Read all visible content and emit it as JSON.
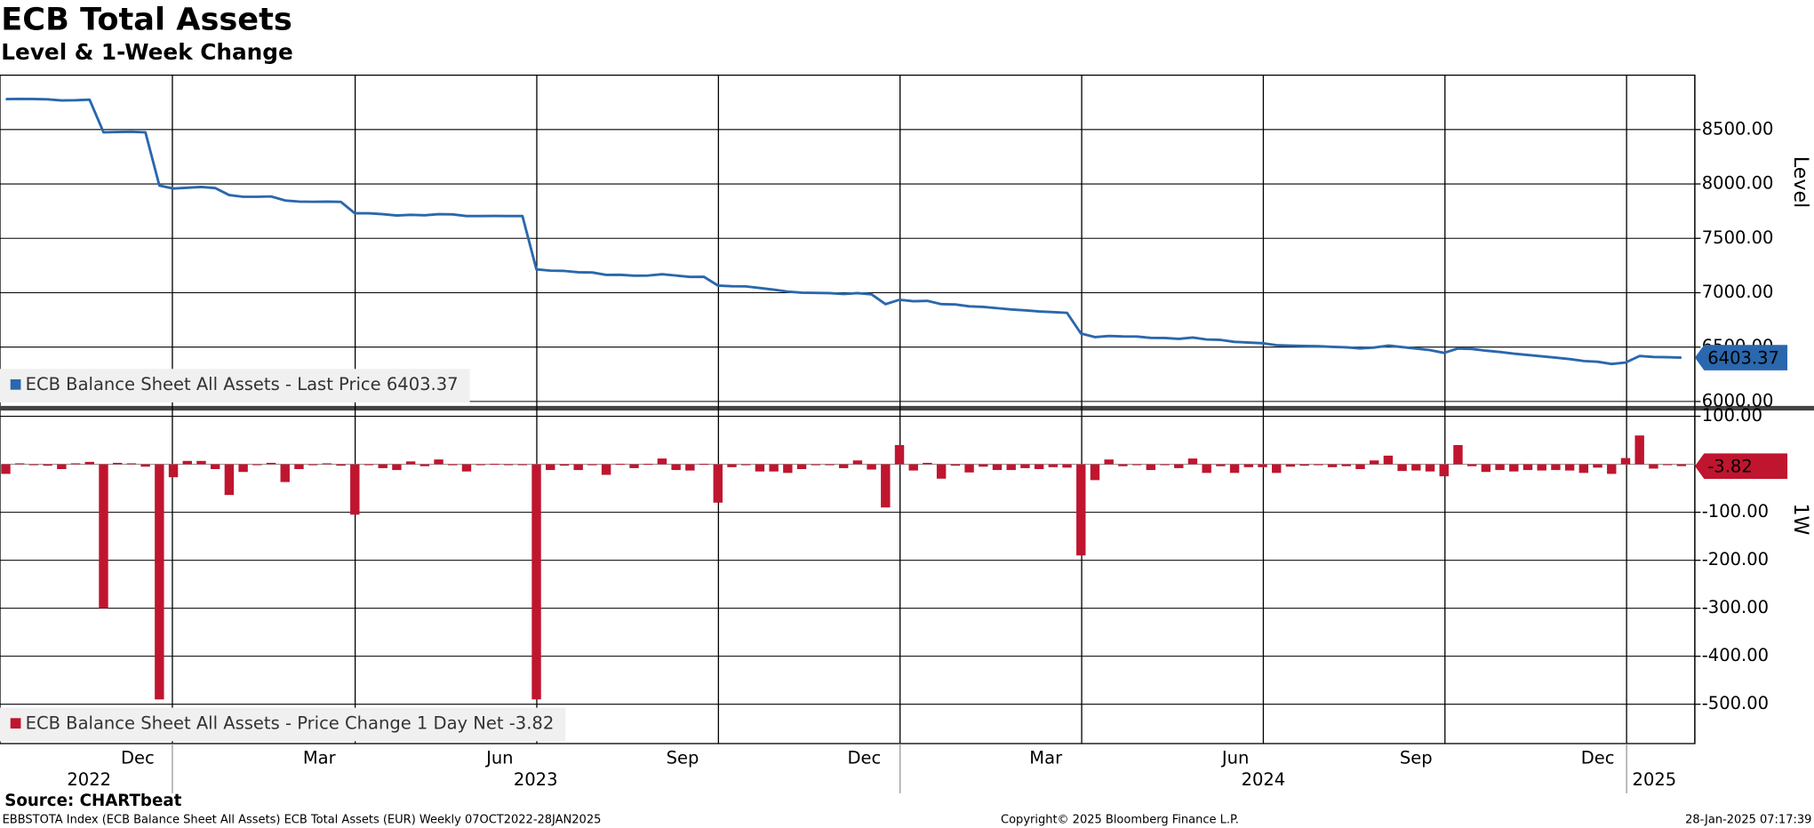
{
  "header": {
    "title": "ECB Total Assets",
    "subtitle": "Level & 1-Week Change"
  },
  "chart_data": [
    {
      "type": "line",
      "y_label": "Level",
      "ylim": [
        5970,
        9000
      ],
      "yticks": [
        {
          "value": 6000,
          "label": "6000.00"
        },
        {
          "value": 6500,
          "label": "6500.00"
        },
        {
          "value": 7000,
          "label": "7000.00"
        },
        {
          "value": 7500,
          "label": "7500.00"
        },
        {
          "value": 8000,
          "label": "8000.00"
        },
        {
          "value": 8500,
          "label": "8500.00"
        }
      ],
      "grid": true,
      "series": [
        {
          "name": "ECB Balance Sheet All Assets - Last Price 6403.37",
          "color": "#2a67ad",
          "values": [
            8780,
            8782,
            8781,
            8778,
            8768,
            8770,
            8775,
            8475,
            8478,
            8480,
            8475,
            7985,
            7958,
            7965,
            7972,
            7962,
            7898,
            7882,
            7882,
            7885,
            7848,
            7838,
            7836,
            7838,
            7835,
            7730,
            7730,
            7722,
            7710,
            7716,
            7712,
            7722,
            7720,
            7705,
            7705,
            7706,
            7705,
            7705,
            7215,
            7203,
            7200,
            7188,
            7186,
            7164,
            7165,
            7157,
            7158,
            7170,
            7158,
            7145,
            7146,
            7066,
            7060,
            7058,
            7043,
            7028,
            7010,
            7000,
            6998,
            6996,
            6988,
            6996,
            6985,
            6895,
            6935,
            6922,
            6925,
            6895,
            6892,
            6875,
            6870,
            6858,
            6846,
            6838,
            6828,
            6822,
            6815,
            6625,
            6592,
            6602,
            6598,
            6597,
            6585,
            6584,
            6576,
            6588,
            6570,
            6566,
            6548,
            6542,
            6536,
            6518,
            6513,
            6510,
            6508,
            6502,
            6498,
            6488,
            6496,
            6514,
            6500,
            6487,
            6472,
            6447,
            6487,
            6483,
            6467,
            6455,
            6440,
            6428,
            6415,
            6403,
            6390,
            6372,
            6365,
            6345,
            6358,
            6418,
            6409,
            6407.19,
            6403.37
          ]
        }
      ]
    },
    {
      "type": "bar",
      "y_label": "1W",
      "ylim": [
        -582,
        112
      ],
      "yticks": [
        {
          "value": 100,
          "label": "100.00"
        },
        {
          "value": -100,
          "label": "-100.00"
        },
        {
          "value": -200,
          "label": "-200.00"
        },
        {
          "value": -300,
          "label": "-300.00"
        },
        {
          "value": -400,
          "label": "-400.00"
        },
        {
          "value": -500,
          "label": "-500.00"
        }
      ],
      "grid": true,
      "series": [
        {
          "name": "ECB Balance Sheet All Assets - Price Change 1 Day Net -3.82",
          "color": "#c0152f",
          "values": [
            -20,
            2,
            -1,
            -3,
            -10,
            2,
            5,
            -300,
            3,
            2,
            -5,
            -490,
            -27,
            7,
            7,
            -10,
            -64,
            -16,
            0,
            3,
            -37,
            -10,
            -2,
            2,
            -3,
            -105,
            0,
            -8,
            -12,
            6,
            -4,
            10,
            -2,
            -15,
            0,
            1,
            -1,
            0,
            -490,
            -12,
            -3,
            -12,
            -2,
            -22,
            1,
            -8,
            1,
            12,
            -12,
            -13,
            1,
            -80,
            -6,
            -2,
            -15,
            -15,
            -18,
            -10,
            -2,
            -2,
            -8,
            8,
            -11,
            -90,
            40,
            -13,
            3,
            -30,
            -3,
            -17,
            -5,
            -12,
            -12,
            -8,
            -10,
            -6,
            -7,
            -190,
            -33,
            10,
            -4,
            -1,
            -12,
            -1,
            -8,
            12,
            -18,
            -4,
            -18,
            -6,
            -6,
            -18,
            -5,
            -3,
            -2,
            -6,
            -4,
            -10,
            8,
            18,
            -14,
            -13,
            -15,
            -25,
            40,
            -4,
            -16,
            -12,
            -15,
            -12,
            -13,
            -12,
            -13,
            -18,
            -7,
            -20,
            13,
            60,
            -9,
            -1.81,
            -3.82
          ]
        }
      ]
    }
  ],
  "x_axis": {
    "months": [
      "Dec",
      "Mar",
      "Jun",
      "Sep",
      "Dec",
      "Mar",
      "Jun",
      "Sep",
      "Dec"
    ],
    "years": [
      "2022",
      "2023",
      "2024",
      "2025"
    ]
  },
  "footer": {
    "source": "Source: CHARTbeat",
    "description": "EBBSTOTA Index (ECB Balance Sheet All Assets) ECB Total Assets (EUR)  Weekly 07OCT2022-28JAN2025",
    "copyright": "Copyright© 2025 Bloomberg Finance L.P.",
    "timestamp": "28-Jan-2025 07:17:39"
  }
}
